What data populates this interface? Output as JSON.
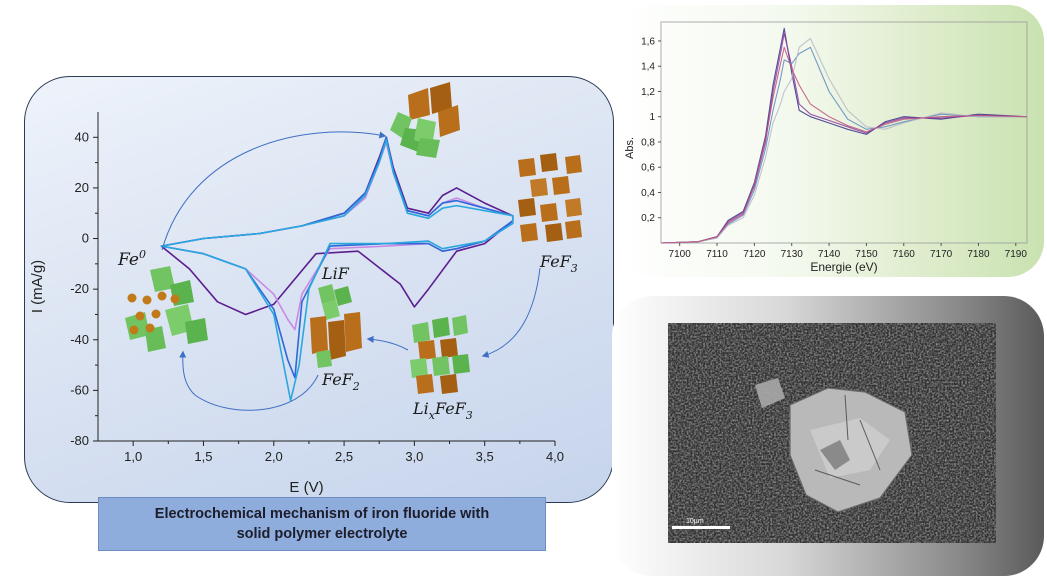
{
  "caption": {
    "line1": "Electrochemical mechanism of iron fluoride with",
    "line2": "solid polymer electrolyte"
  },
  "species": {
    "fe0": "Fe",
    "fe0_sup": "0",
    "lif": "LiF",
    "fef2": "FeF",
    "fef2_sub": "2",
    "fef3": "FeF",
    "fef3_sub": "3",
    "lixfef3_a": "Li",
    "lixfef3_x": "x",
    "lixfef3_b": "FeF",
    "lixfef3_sub": "3"
  },
  "sem": {
    "scale_label": "10µm"
  },
  "colors": {
    "cv_series": [
      "#5b1e8f",
      "#c98ae6",
      "#2f67d8",
      "#2aa8de"
    ],
    "arrow": "#3f6fc4",
    "fe_brown": "#b86e1a",
    "fluoride_green": "#72c462"
  },
  "chart_data": [
    {
      "type": "line",
      "xlabel": "E (V)",
      "ylabel": "I (mA/g)",
      "xlim": [
        0.75,
        4.0
      ],
      "ylim": [
        -80,
        50
      ],
      "xticks": [
        "1,0",
        "1,5",
        "2,0",
        "2,5",
        "3,0",
        "3,5",
        "4,0"
      ],
      "yticks": [
        "40",
        "20",
        "0",
        "-20",
        "-40",
        "-60",
        "-80"
      ],
      "xtick_values": [
        1.0,
        1.5,
        2.0,
        2.5,
        3.0,
        3.5,
        4.0
      ],
      "ytick_values": [
        40,
        20,
        0,
        -20,
        -40,
        -60,
        -80
      ],
      "grid": false,
      "series": [
        {
          "x": [
            1.2,
            1.5,
            1.9,
            2.2,
            2.5,
            2.65,
            2.75,
            2.8,
            2.85,
            2.95,
            3.1,
            3.2,
            3.3,
            3.5,
            3.7,
            3.7,
            3.5,
            3.3,
            3.1,
            3.0,
            2.9,
            2.6,
            2.3,
            2.0,
            1.8,
            1.6,
            1.4,
            1.2
          ],
          "y": [
            -3,
            0,
            2,
            5,
            10,
            18,
            32,
            40,
            28,
            12,
            10,
            17,
            20,
            14,
            9,
            7,
            -2,
            -5,
            -20,
            -27,
            -18,
            -5,
            -6,
            -26,
            -30,
            -25,
            -12,
            -3
          ]
        },
        {
          "x": [
            1.2,
            1.5,
            1.9,
            2.2,
            2.5,
            2.65,
            2.75,
            2.8,
            2.85,
            2.95,
            3.1,
            3.2,
            3.3,
            3.5,
            3.7,
            3.7,
            3.5,
            3.3,
            3.2,
            3.1,
            2.8,
            2.4,
            2.2,
            2.15,
            2.1,
            2.0,
            1.8,
            1.5,
            1.2
          ],
          "y": [
            -3,
            0,
            2,
            5,
            9,
            16,
            30,
            38,
            26,
            11,
            9,
            14,
            16,
            12,
            9,
            6,
            -1,
            -4,
            -5,
            -2,
            -3,
            -4,
            -22,
            -36,
            -32,
            -22,
            -12,
            -6,
            -3
          ]
        },
        {
          "x": [
            1.2,
            1.5,
            1.9,
            2.2,
            2.5,
            2.65,
            2.75,
            2.8,
            2.85,
            2.95,
            3.1,
            3.2,
            3.3,
            3.5,
            3.7,
            3.7,
            3.5,
            3.3,
            3.2,
            3.1,
            2.8,
            2.4,
            2.2,
            2.15,
            2.1,
            2.0,
            1.8,
            1.5,
            1.2
          ],
          "y": [
            -3,
            0,
            2,
            5,
            10,
            18,
            31,
            40,
            27,
            11,
            9,
            14,
            15,
            12,
            9,
            7,
            -1,
            -4,
            -5,
            -2,
            -2,
            -3,
            -25,
            -55,
            -48,
            -28,
            -12,
            -6,
            -3
          ]
        },
        {
          "x": [
            1.2,
            1.5,
            1.9,
            2.2,
            2.5,
            2.65,
            2.75,
            2.8,
            2.85,
            2.95,
            3.1,
            3.2,
            3.3,
            3.5,
            3.7,
            3.7,
            3.5,
            3.3,
            3.2,
            3.1,
            2.8,
            2.4,
            2.25,
            2.18,
            2.12,
            2.0,
            1.8,
            1.5,
            1.2
          ],
          "y": [
            -3,
            0,
            2,
            5,
            9,
            17,
            30,
            39,
            26,
            10,
            8,
            12,
            13,
            11,
            9,
            6,
            -1,
            -3,
            -4,
            -1,
            -2,
            -2,
            -20,
            -50,
            -64,
            -30,
            -12,
            -6,
            -3
          ]
        }
      ]
    },
    {
      "type": "line",
      "xlabel": "Energie (eV)",
      "ylabel": "Abs.",
      "xlim": [
        7095,
        7193
      ],
      "ylim": [
        0,
        1.75
      ],
      "xticks": [
        "7100",
        "7110",
        "7120",
        "7130",
        "7140",
        "7150",
        "7160",
        "7170",
        "7180",
        "7190"
      ],
      "yticks": [
        "0,2",
        "0,4",
        "0,6",
        "0,8",
        "1",
        "1,2",
        "1,4",
        "1,6"
      ],
      "xtick_values": [
        7100,
        7110,
        7120,
        7130,
        7140,
        7150,
        7160,
        7170,
        7180,
        7190
      ],
      "ytick_values": [
        0.2,
        0.4,
        0.6,
        0.8,
        1.0,
        1.2,
        1.4,
        1.6
      ],
      "grid": false,
      "series": [
        {
          "x": [
            7095,
            7105,
            7110,
            7113,
            7117,
            7120,
            7123,
            7125,
            7127,
            7128,
            7130,
            7132,
            7135,
            7140,
            7145,
            7150,
            7155,
            7160,
            7170,
            7180,
            7193
          ],
          "y": [
            0.0,
            0.01,
            0.05,
            0.18,
            0.25,
            0.48,
            0.85,
            1.25,
            1.55,
            1.7,
            1.35,
            1.05,
            1.0,
            0.95,
            0.9,
            0.86,
            0.96,
            1.0,
            0.98,
            1.02,
            1.0
          ]
        },
        {
          "x": [
            7095,
            7105,
            7110,
            7113,
            7117,
            7120,
            7123,
            7125,
            7127,
            7128,
            7130,
            7132,
            7135,
            7140,
            7145,
            7150,
            7155,
            7160,
            7170,
            7180,
            7193
          ],
          "y": [
            0.0,
            0.01,
            0.05,
            0.17,
            0.24,
            0.45,
            0.8,
            1.2,
            1.5,
            1.66,
            1.4,
            1.1,
            1.02,
            0.97,
            0.92,
            0.87,
            0.95,
            0.99,
            0.99,
            1.01,
            1.0
          ]
        },
        {
          "x": [
            7095,
            7105,
            7110,
            7113,
            7117,
            7120,
            7123,
            7125,
            7127,
            7128,
            7130,
            7132,
            7135,
            7140,
            7145,
            7150,
            7155,
            7160,
            7170,
            7180,
            7193
          ],
          "y": [
            0.0,
            0.01,
            0.04,
            0.15,
            0.22,
            0.42,
            0.75,
            1.05,
            1.3,
            1.45,
            1.42,
            1.5,
            1.55,
            1.2,
            0.98,
            0.9,
            0.92,
            0.96,
            1.02,
            1.0,
            1.0
          ]
        },
        {
          "x": [
            7095,
            7105,
            7110,
            7113,
            7117,
            7120,
            7123,
            7125,
            7127,
            7128,
            7130,
            7132,
            7135,
            7140,
            7145,
            7150,
            7155,
            7160,
            7170,
            7180,
            7193
          ],
          "y": [
            0.0,
            0.01,
            0.04,
            0.14,
            0.2,
            0.38,
            0.68,
            0.95,
            1.1,
            1.2,
            1.3,
            1.55,
            1.62,
            1.3,
            1.05,
            0.92,
            0.9,
            0.95,
            1.03,
            1.0,
            1.0
          ]
        },
        {
          "x": [
            7095,
            7105,
            7110,
            7113,
            7117,
            7120,
            7123,
            7125,
            7127,
            7128,
            7130,
            7132,
            7135,
            7140,
            7145,
            7150,
            7155,
            7160,
            7170,
            7180,
            7193
          ],
          "y": [
            0.0,
            0.01,
            0.05,
            0.16,
            0.23,
            0.46,
            0.82,
            1.15,
            1.42,
            1.55,
            1.38,
            1.25,
            1.1,
            1.0,
            0.93,
            0.88,
            0.94,
            0.98,
            1.0,
            1.01,
            1.0
          ]
        }
      ]
    }
  ]
}
